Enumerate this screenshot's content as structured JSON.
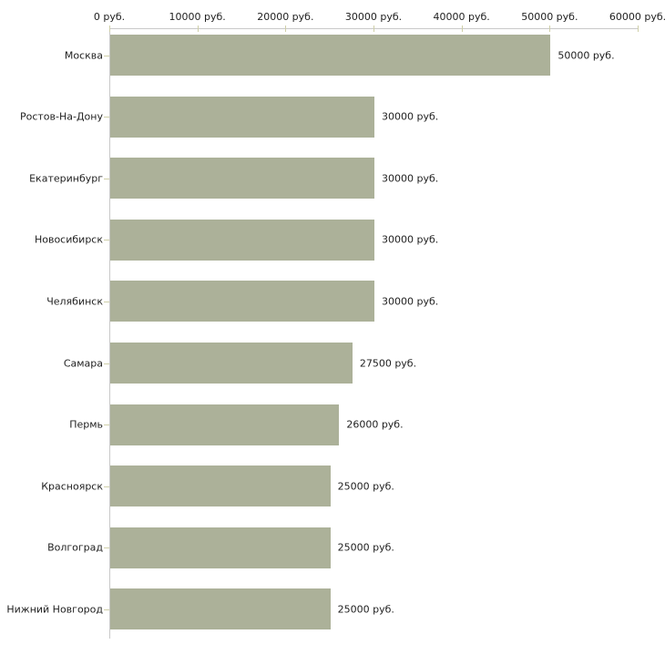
{
  "chart_data": {
    "type": "bar",
    "orientation": "horizontal",
    "title": "",
    "unit": "руб.",
    "categories": [
      "Москва",
      "Ростов-На-Дону",
      "Екатеринбург",
      "Новосибирск",
      "Челябинск",
      "Самара",
      "Пермь",
      "Красноярск",
      "Волгоград",
      "Нижний Новгород"
    ],
    "values": [
      50000,
      30000,
      30000,
      30000,
      30000,
      27500,
      26000,
      25000,
      25000,
      25000
    ],
    "value_labels": [
      "50000 руб.",
      "30000 руб.",
      "30000 руб.",
      "30000 руб.",
      "30000 руб.",
      "27500 руб.",
      "26000 руб.",
      "25000 руб.",
      "25000 руб.",
      "25000 руб."
    ],
    "x_axis": {
      "position": "top",
      "min": 0,
      "max": 60000,
      "ticks": [
        0,
        10000,
        20000,
        30000,
        40000,
        50000,
        60000
      ],
      "tick_labels": [
        "0 руб.",
        "10000 руб.",
        "20000 руб.",
        "30000 руб.",
        "40000 руб.",
        "50000 руб.",
        "60000 руб."
      ]
    },
    "legend": null,
    "grid": false,
    "colors": {
      "bar": "#acb199",
      "axis_line": "#c9c9c9",
      "tick": "#cfcfa8",
      "text": "#1f1f1f",
      "background": "#ffffff"
    }
  }
}
